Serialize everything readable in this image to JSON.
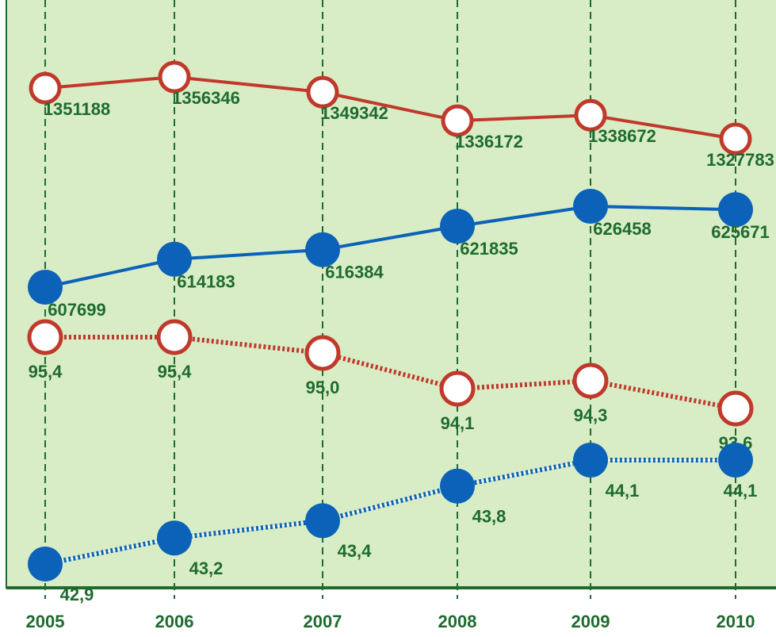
{
  "chart_data": {
    "type": "line",
    "categories": [
      "2005",
      "2006",
      "2007",
      "2008",
      "2009",
      "2010"
    ],
    "series": [
      {
        "color": "#c0392b",
        "line_style": "solid",
        "marker": "hollow",
        "values": [
          1351188,
          1356346,
          1349342,
          1336172,
          1338672,
          1327783
        ]
      },
      {
        "color": "#0b62b8",
        "line_style": "solid",
        "marker": "filled",
        "values": [
          607699,
          614183,
          616384,
          621835,
          626458,
          625671
        ]
      },
      {
        "color": "#c0392b",
        "line_style": "dotted",
        "marker": "hollow",
        "values": [
          95.4,
          95.4,
          95.0,
          94.1,
          94.3,
          93.6
        ],
        "value_labels": [
          "95,4",
          "95,4",
          "95,0",
          "94,1",
          "94,3",
          "93,6"
        ]
      },
      {
        "color": "#0b62b8",
        "line_style": "dotted",
        "marker": "filled",
        "values": [
          42.9,
          43.2,
          43.4,
          43.8,
          44.1,
          44.1
        ],
        "value_labels": [
          "42,9",
          "43,2",
          "43,4",
          "43,8",
          "44,1",
          "44,1"
        ]
      }
    ],
    "grid": true
  }
}
